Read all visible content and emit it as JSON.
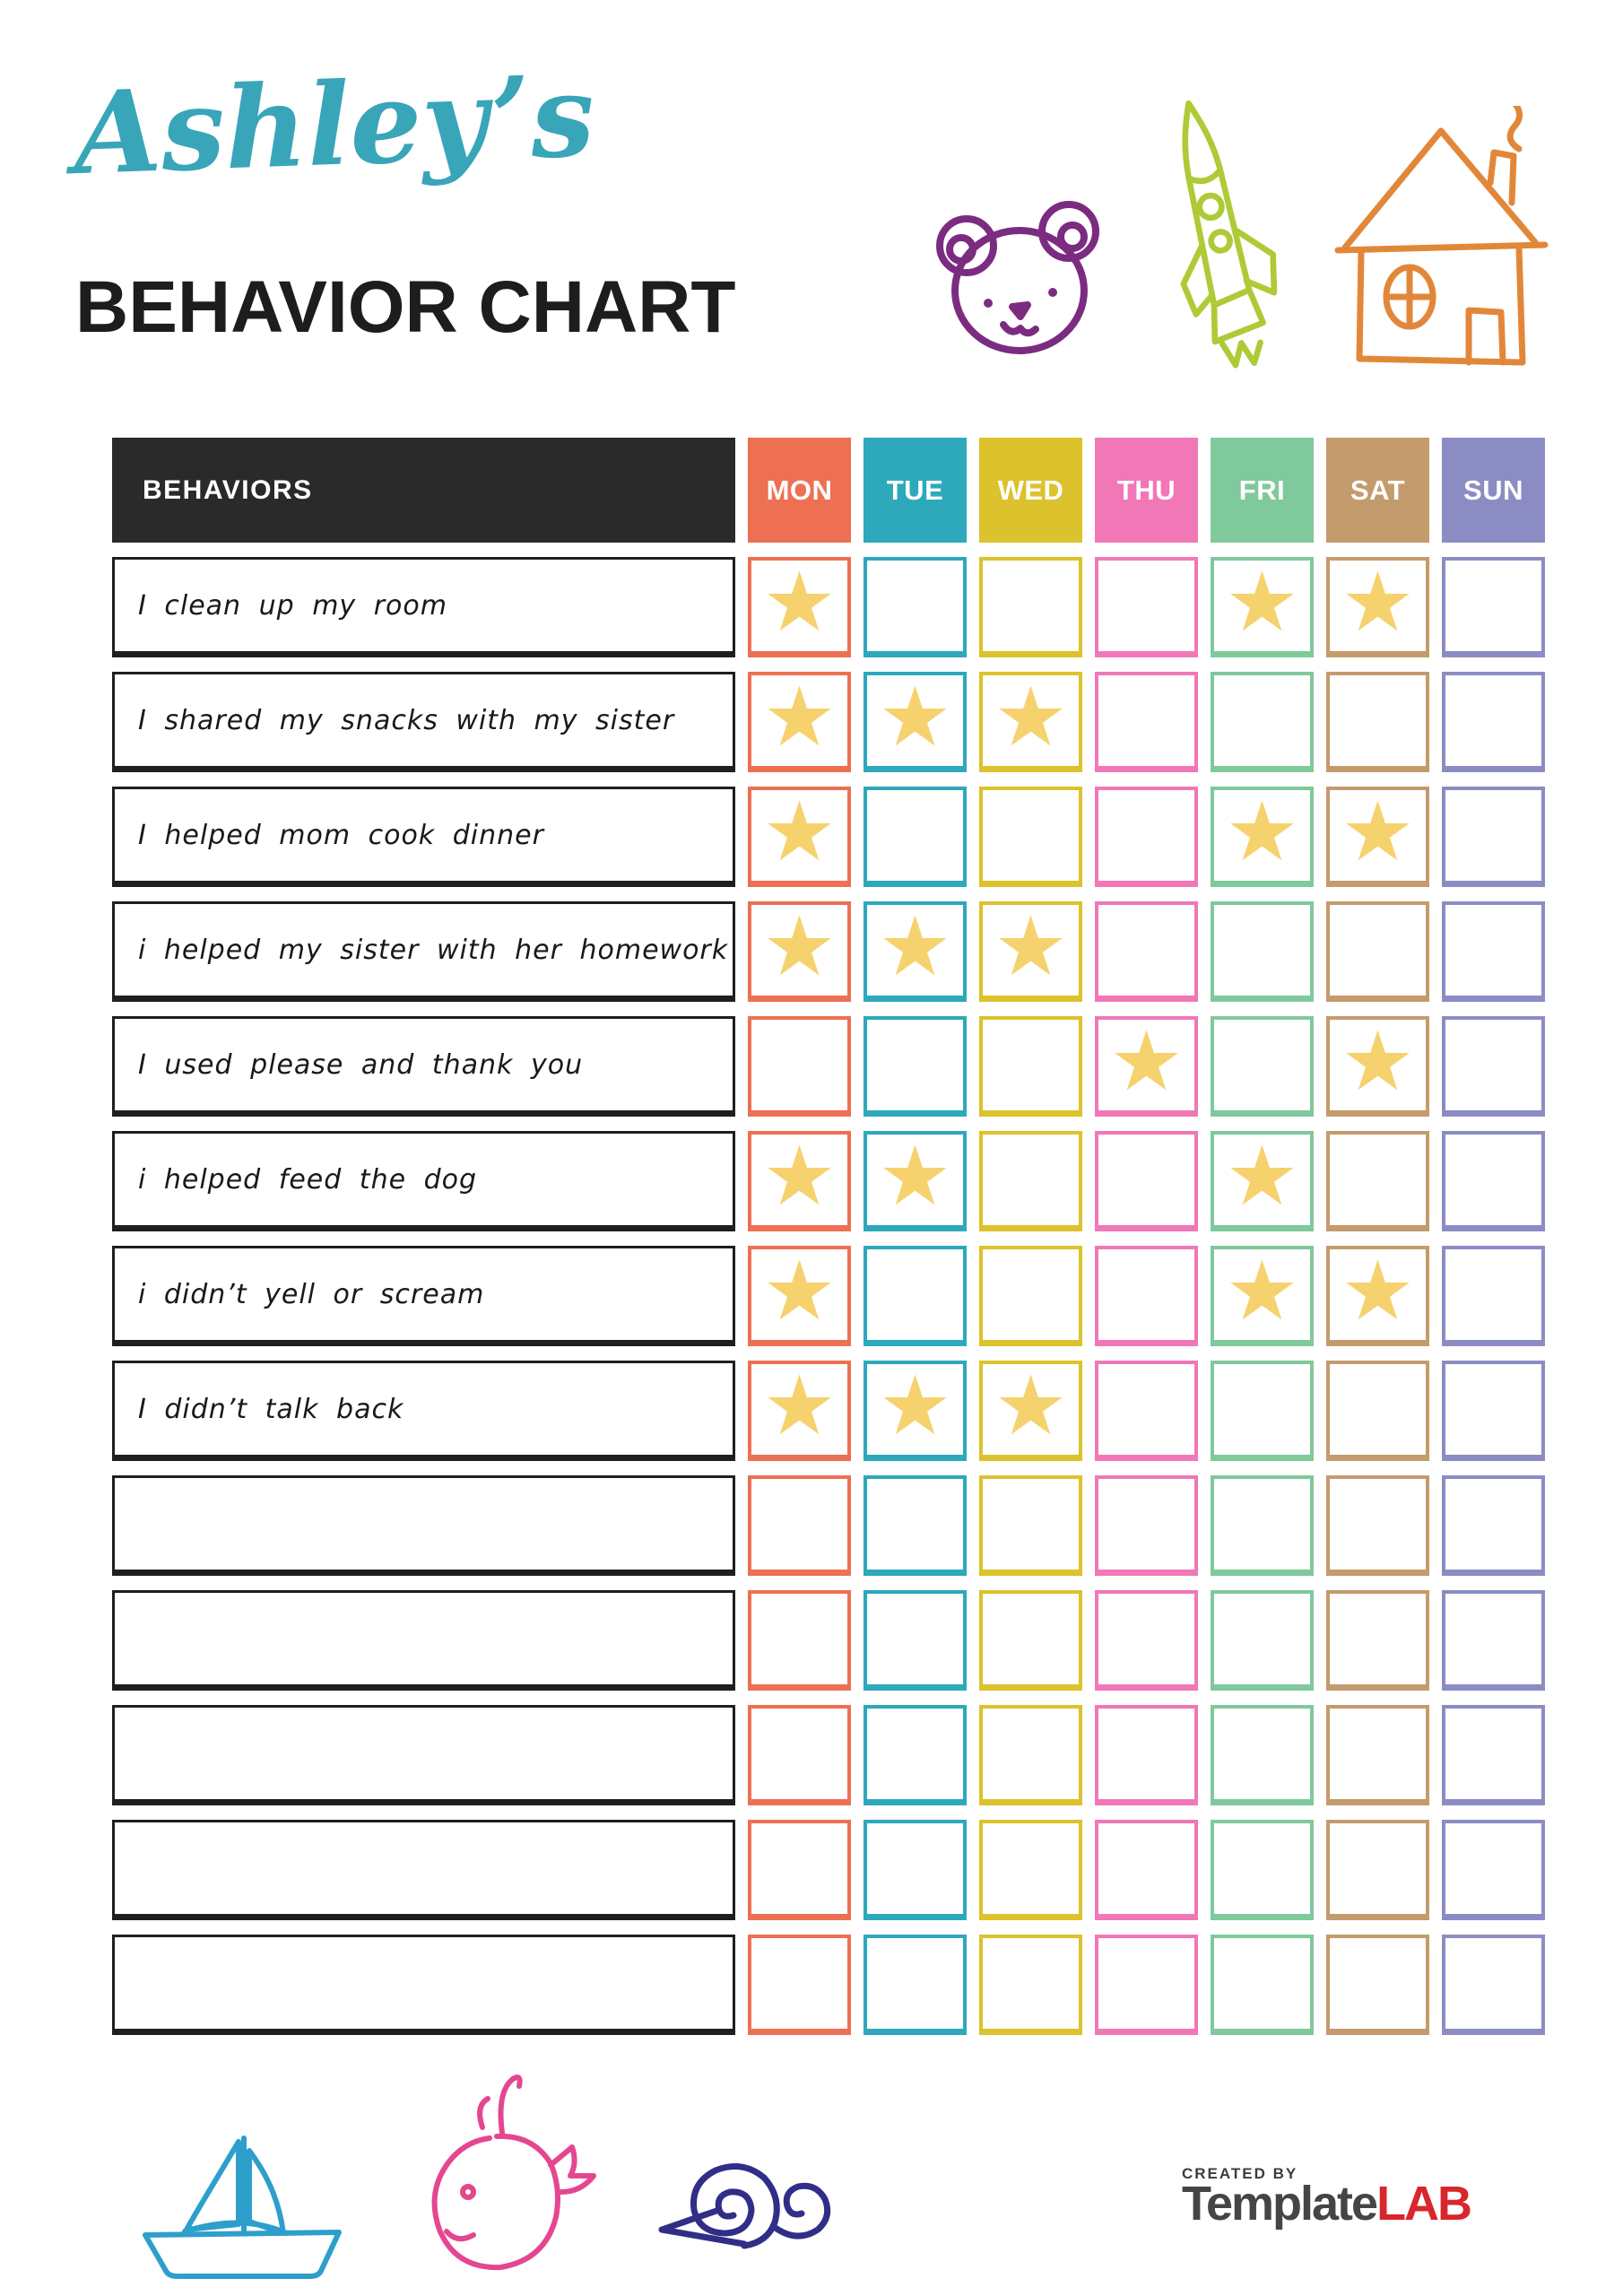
{
  "header": {
    "name": "Ashley’s",
    "title": "BEHAVIOR CHART"
  },
  "table": {
    "behaviors_header": "BEHAVIORS",
    "star_glyph": "★",
    "star_color": "#F6D26E",
    "days": [
      {
        "label": "MON",
        "color": "#ED7053"
      },
      {
        "label": "TUE",
        "color": "#2EA8BB"
      },
      {
        "label": "WED",
        "color": "#DCC22C"
      },
      {
        "label": "THU",
        "color": "#F177B7"
      },
      {
        "label": "FRI",
        "color": "#7FC99C"
      },
      {
        "label": "SAT",
        "color": "#C49B6D"
      },
      {
        "label": "SUN",
        "color": "#8C8CC4"
      }
    ],
    "rows": [
      {
        "behavior": "I clean up my room",
        "stars": [
          1,
          0,
          0,
          0,
          1,
          1,
          0
        ]
      },
      {
        "behavior": "I shared my snacks with my sister",
        "stars": [
          1,
          1,
          1,
          0,
          0,
          0,
          0
        ]
      },
      {
        "behavior": "I helped mom cook dinner",
        "stars": [
          1,
          0,
          0,
          0,
          1,
          1,
          0
        ]
      },
      {
        "behavior": "i helped my sister with her homework",
        "stars": [
          1,
          1,
          1,
          0,
          0,
          0,
          0
        ]
      },
      {
        "behavior": "I used please and thank you",
        "stars": [
          0,
          0,
          0,
          1,
          0,
          1,
          0
        ]
      },
      {
        "behavior": "i helped feed the dog",
        "stars": [
          1,
          1,
          0,
          0,
          1,
          0,
          0
        ]
      },
      {
        "behavior": "i didn’t yell or scream",
        "stars": [
          1,
          0,
          0,
          0,
          1,
          1,
          0
        ]
      },
      {
        "behavior": "I didn’t talk back",
        "stars": [
          1,
          1,
          1,
          0,
          0,
          0,
          0
        ]
      },
      {
        "behavior": "",
        "stars": [
          0,
          0,
          0,
          0,
          0,
          0,
          0
        ]
      },
      {
        "behavior": "",
        "stars": [
          0,
          0,
          0,
          0,
          0,
          0,
          0
        ]
      },
      {
        "behavior": "",
        "stars": [
          0,
          0,
          0,
          0,
          0,
          0,
          0
        ]
      },
      {
        "behavior": "",
        "stars": [
          0,
          0,
          0,
          0,
          0,
          0,
          0
        ]
      },
      {
        "behavior": "",
        "stars": [
          0,
          0,
          0,
          0,
          0,
          0,
          0
        ]
      }
    ]
  },
  "decorations": {
    "top": [
      "bear",
      "rocket",
      "house"
    ],
    "bottom": [
      "sailboat",
      "whale",
      "snail"
    ],
    "colors": {
      "bear": "#7B2C80",
      "rocket": "#AECB37",
      "house": "#E2873A",
      "sailboat": "#2E9FCB",
      "whale": "#E4478F",
      "snail": "#302E87"
    }
  },
  "footer": {
    "created_by": "CREATED BY",
    "brand_part1": "Template",
    "brand_part2": "LAB"
  }
}
